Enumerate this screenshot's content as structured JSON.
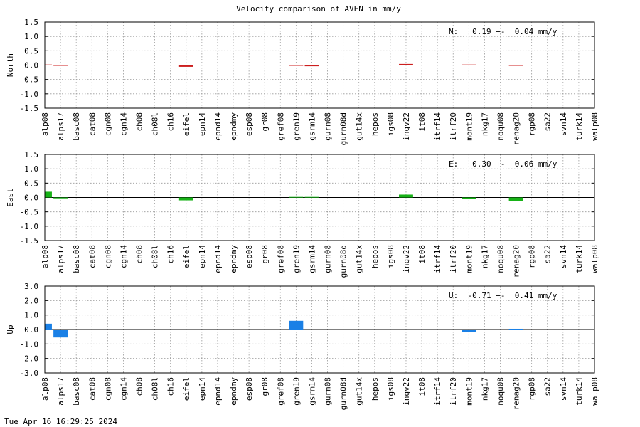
{
  "title": "Velocity comparison of AVEN in mm/y",
  "timestamp": "Tue Apr 16 16:29:25 2024",
  "chart_data": [
    {
      "type": "bar",
      "ylabel": "North",
      "ylim": [
        -1.5,
        1.5
      ],
      "yticks": [
        "-1.5",
        "-1.0",
        "-0.5",
        "0.0",
        "0.5",
        "1.0",
        "1.5"
      ],
      "grid": true,
      "color": "#cc1f1f",
      "annotation": "N:   0.19 +-  0.04 mm/y",
      "categories": [
        "alp08",
        "alps17",
        "basc08",
        "cat08",
        "cgn08",
        "cgn14",
        "ch08",
        "ch08l",
        "ch16",
        "eifel",
        "epn14",
        "epnd14",
        "epndmy",
        "esp08",
        "gr08",
        "gref08",
        "gren19",
        "gsrm14",
        "gurn08",
        "gurn08d",
        "gut14x",
        "hepos",
        "igs08",
        "ingv22",
        "it08",
        "itrf14",
        "itrf20",
        "mont19",
        "nkg17",
        "noqu08",
        "renag20",
        "rgp08",
        "sa22",
        "svn14",
        "turk14",
        "walp08"
      ],
      "values": [
        0.02,
        -0.02,
        0,
        0,
        0,
        0,
        0,
        0,
        0,
        -0.06,
        0,
        0,
        0,
        0,
        0,
        0,
        -0.02,
        -0.04,
        0,
        0,
        0,
        0,
        0,
        0.04,
        0,
        0,
        0,
        0.02,
        0,
        0,
        -0.02,
        0,
        0,
        0,
        0,
        0
      ]
    },
    {
      "type": "bar",
      "ylabel": "East",
      "ylim": [
        -1.5,
        1.5
      ],
      "yticks": [
        "-1.5",
        "-1.0",
        "-0.5",
        "0.0",
        "0.5",
        "1.0",
        "1.5"
      ],
      "grid": true,
      "color": "#17b217",
      "annotation": "E:   0.30 +-  0.06 mm/y",
      "categories": [
        "alp08",
        "alps17",
        "basc08",
        "cat08",
        "cgn08",
        "cgn14",
        "ch08",
        "ch08l",
        "ch16",
        "eifel",
        "epn14",
        "epnd14",
        "epndmy",
        "esp08",
        "gr08",
        "gref08",
        "gren19",
        "gsrm14",
        "gurn08",
        "gurn08d",
        "gut14x",
        "hepos",
        "igs08",
        "ingv22",
        "it08",
        "itrf14",
        "itrf20",
        "mont19",
        "nkg17",
        "noqu08",
        "renag20",
        "rgp08",
        "sa22",
        "svn14",
        "turk14",
        "walp08"
      ],
      "values": [
        0.2,
        -0.03,
        0,
        0,
        0,
        0,
        0,
        0,
        0,
        -0.1,
        0,
        0,
        0,
        0,
        0,
        0,
        0.02,
        0.02,
        0,
        0,
        0,
        0,
        0,
        0.1,
        0,
        0,
        0,
        -0.06,
        0,
        0,
        -0.13,
        0,
        0,
        0,
        0,
        0
      ]
    },
    {
      "type": "bar",
      "ylabel": "Up",
      "ylim": [
        -3.0,
        3.0
      ],
      "yticks": [
        "-3.0",
        "-2.0",
        "-1.0",
        "0.0",
        "1.0",
        "2.0",
        "3.0"
      ],
      "grid": true,
      "color": "#1a80e6",
      "annotation": "U:  -0.71 +-  0.41 mm/y",
      "categories": [
        "alp08",
        "alps17",
        "basc08",
        "cat08",
        "cgn08",
        "cgn14",
        "ch08",
        "ch08l",
        "ch16",
        "eifel",
        "epn14",
        "epnd14",
        "epndmy",
        "esp08",
        "gr08",
        "gref08",
        "gren19",
        "gsrm14",
        "gurn08",
        "gurn08d",
        "gut14x",
        "hepos",
        "igs08",
        "ingv22",
        "it08",
        "itrf14",
        "itrf20",
        "mont19",
        "nkg17",
        "noqu08",
        "renag20",
        "rgp08",
        "sa22",
        "svn14",
        "turk14",
        "walp08"
      ],
      "values": [
        0.4,
        -0.55,
        0,
        0,
        0,
        0,
        0,
        0,
        0,
        0,
        0,
        0,
        0,
        0,
        0,
        0,
        0.6,
        0,
        0,
        0,
        0,
        0,
        0,
        0,
        0,
        0,
        0,
        -0.18,
        0,
        0,
        0.05,
        0,
        0,
        0,
        0,
        0
      ]
    }
  ]
}
